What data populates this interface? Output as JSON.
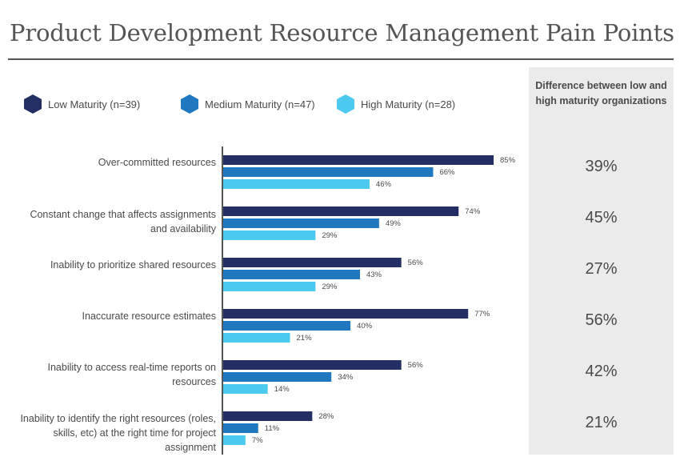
{
  "title": "Product Development Resource Management Pain Points",
  "legend": [
    {
      "label": "Low Maturity (n=39)",
      "color": "#232f62"
    },
    {
      "label": "Medium Maturity (n=47)",
      "color": "#1f78c0"
    },
    {
      "label": "High Maturity (n=28)",
      "color": "#4cc9ee"
    }
  ],
  "difference_header": "Difference between low and high maturity organizations",
  "chart_data": {
    "type": "bar",
    "orientation": "horizontal",
    "categories": [
      "Over-committed resources",
      "Constant change that affects assignments and availability",
      "Inability to prioritize shared resources",
      "Inaccurate resource estimates",
      "Inability to access real-time reports on resources",
      "Inability to identify the right resources (roles, skills, etc) at the right time for project assignment"
    ],
    "series": [
      {
        "name": "Low Maturity (n=39)",
        "color": "#232f62",
        "values": [
          85,
          74,
          56,
          77,
          56,
          28
        ]
      },
      {
        "name": "Medium Maturity (n=47)",
        "color": "#1f78c0",
        "values": [
          66,
          49,
          43,
          40,
          34,
          11
        ]
      },
      {
        "name": "High Maturity (n=28)",
        "color": "#4cc9ee",
        "values": [
          46,
          29,
          29,
          21,
          14,
          7
        ]
      }
    ],
    "value_suffix": "%",
    "differences": [
      "39%",
      "45%",
      "27%",
      "56%",
      "42%",
      "21%"
    ],
    "xlim": [
      0,
      100
    ],
    "grid": false,
    "legend_position": "top"
  }
}
